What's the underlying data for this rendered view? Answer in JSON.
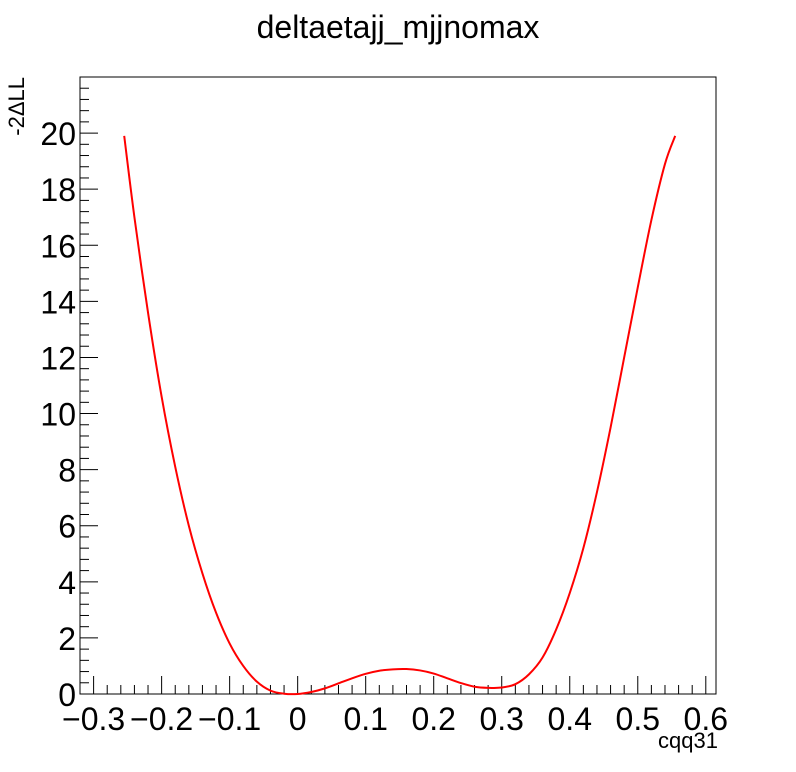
{
  "chart_data": {
    "type": "line",
    "title": "deltaetajj_mjjnomax",
    "xlabel": "cqq31",
    "ylabel": "-2ΔLL",
    "xlim": [
      -0.32,
      0.615
    ],
    "ylim": [
      0,
      22
    ],
    "x_ticks": [
      -0.3,
      -0.2,
      -0.1,
      0,
      0.1,
      0.2,
      0.3,
      0.4,
      0.5,
      0.6
    ],
    "x_tick_labels": [
      "−0.3",
      "−0.2",
      "−0.1",
      "0",
      "0.1",
      "0.2",
      "0.3",
      "0.4",
      "0.5",
      "0.6"
    ],
    "y_ticks": [
      0,
      2,
      4,
      6,
      8,
      10,
      12,
      14,
      16,
      18,
      20
    ],
    "y_tick_labels": [
      "0",
      "2",
      "4",
      "6",
      "8",
      "10",
      "12",
      "14",
      "16",
      "18",
      "20"
    ],
    "grid": false,
    "series": [
      {
        "color": "#ff0000",
        "x": [
          -0.255,
          -0.24,
          -0.22,
          -0.2,
          -0.18,
          -0.16,
          -0.14,
          -0.12,
          -0.1,
          -0.08,
          -0.06,
          -0.04,
          -0.02,
          0,
          0.02,
          0.04,
          0.06,
          0.08,
          0.1,
          0.12,
          0.14,
          0.16,
          0.18,
          0.2,
          0.22,
          0.24,
          0.26,
          0.28,
          0.3,
          0.32,
          0.34,
          0.36,
          0.38,
          0.4,
          0.42,
          0.44,
          0.46,
          0.48,
          0.5,
          0.52,
          0.54,
          0.555
        ],
        "y": [
          19.9,
          17.0,
          13.6,
          10.6,
          8.1,
          6.0,
          4.3,
          2.9,
          1.8,
          1.0,
          0.44,
          0.12,
          0.01,
          0.0,
          0.07,
          0.2,
          0.38,
          0.56,
          0.72,
          0.83,
          0.88,
          0.89,
          0.84,
          0.73,
          0.56,
          0.39,
          0.26,
          0.22,
          0.23,
          0.35,
          0.7,
          1.3,
          2.3,
          3.6,
          5.2,
          7.2,
          9.5,
          12.0,
          14.5,
          16.9,
          18.9,
          19.9
        ]
      }
    ]
  }
}
